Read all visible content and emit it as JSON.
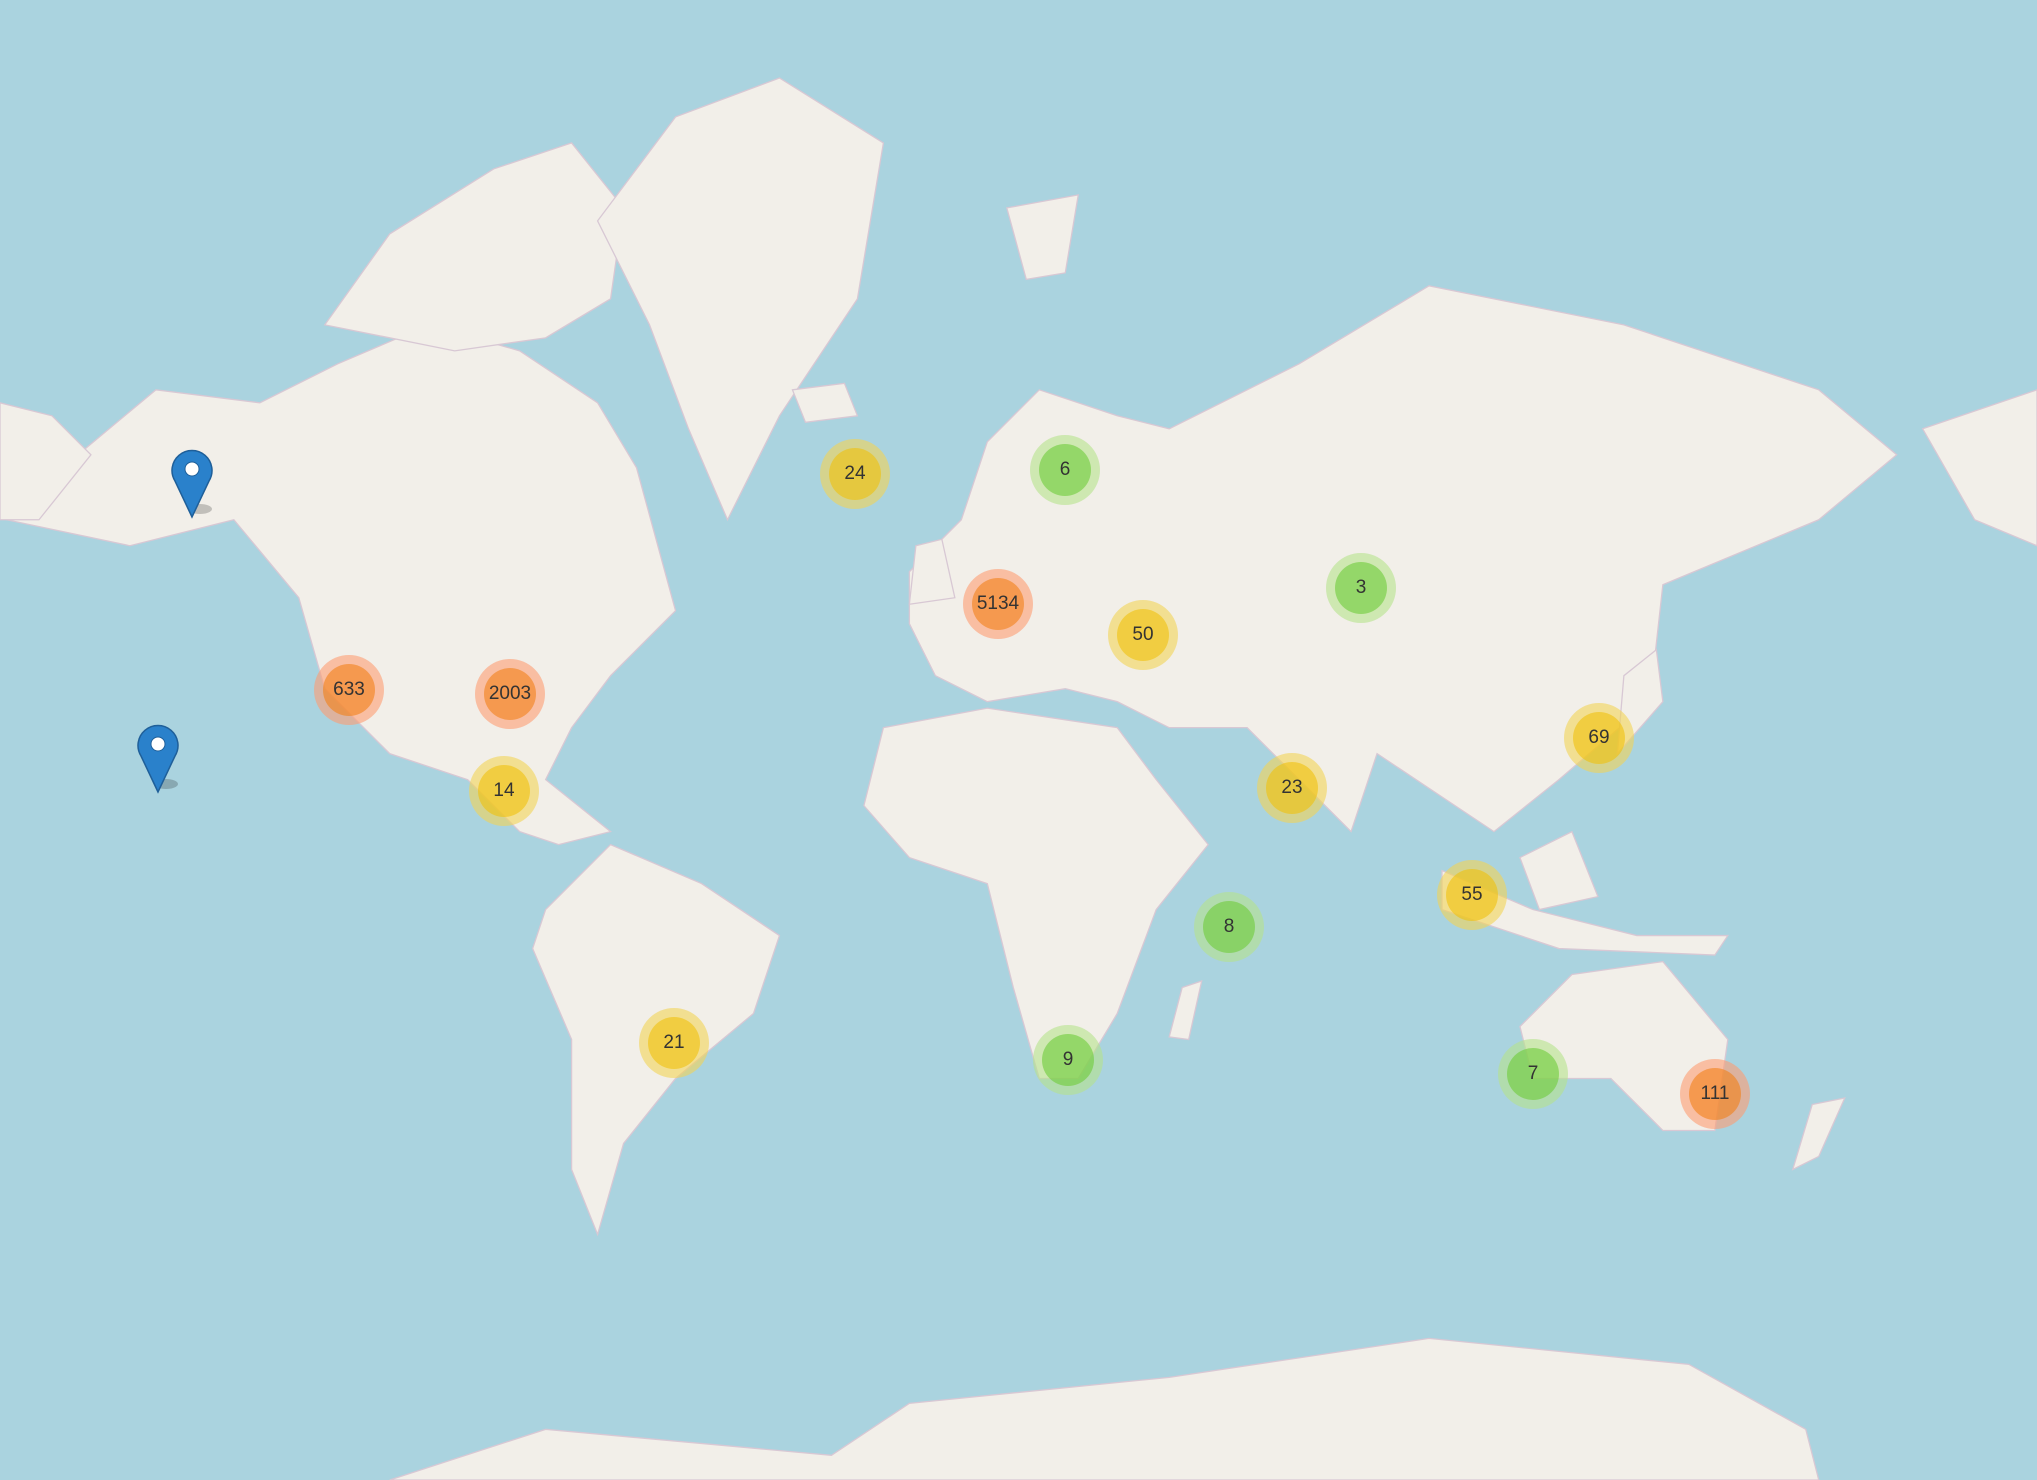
{
  "map": {
    "colors": {
      "water": "#aad3df",
      "land": "#f2efe9",
      "border": "#c8a8c0",
      "marker": "#2a81cb"
    },
    "clusters": [
      {
        "count": "24",
        "size": "medium",
        "lat": 64,
        "lon": -19
      },
      {
        "count": "6",
        "size": "small",
        "lat": 64,
        "lon": 17
      },
      {
        "count": "5134",
        "size": "large",
        "lat": 49,
        "lon": 6
      },
      {
        "count": "50",
        "size": "medium",
        "lat": 45,
        "lon": 31
      },
      {
        "count": "3",
        "size": "small",
        "lat": 53,
        "lon": 72
      },
      {
        "count": "633",
        "size": "large",
        "lat": 36,
        "lon": -120
      },
      {
        "count": "2003",
        "size": "large",
        "lat": 36,
        "lon": -85
      },
      {
        "count": "14",
        "size": "medium",
        "lat": 20,
        "lon": -98
      },
      {
        "count": "69",
        "size": "medium",
        "lat": 33,
        "lon": 130
      },
      {
        "count": "23",
        "size": "medium",
        "lat": 20,
        "lon": 74
      },
      {
        "count": "55",
        "size": "medium",
        "lat": 1,
        "lon": 106
      },
      {
        "count": "8",
        "size": "small",
        "lat": -7,
        "lon": 44
      },
      {
        "count": "21",
        "size": "medium",
        "lat": -29,
        "lon": -53
      },
      {
        "count": "9",
        "size": "small",
        "lat": -32,
        "lon": 22
      },
      {
        "count": "7",
        "size": "small",
        "lat": -34,
        "lon": 116
      },
      {
        "count": "111",
        "size": "large",
        "lat": -37,
        "lon": 147
      }
    ],
    "markers": [
      {
        "name": "alaska",
        "icon": "map-pin-icon"
      },
      {
        "name": "hawaii",
        "icon": "map-pin-icon"
      }
    ]
  }
}
